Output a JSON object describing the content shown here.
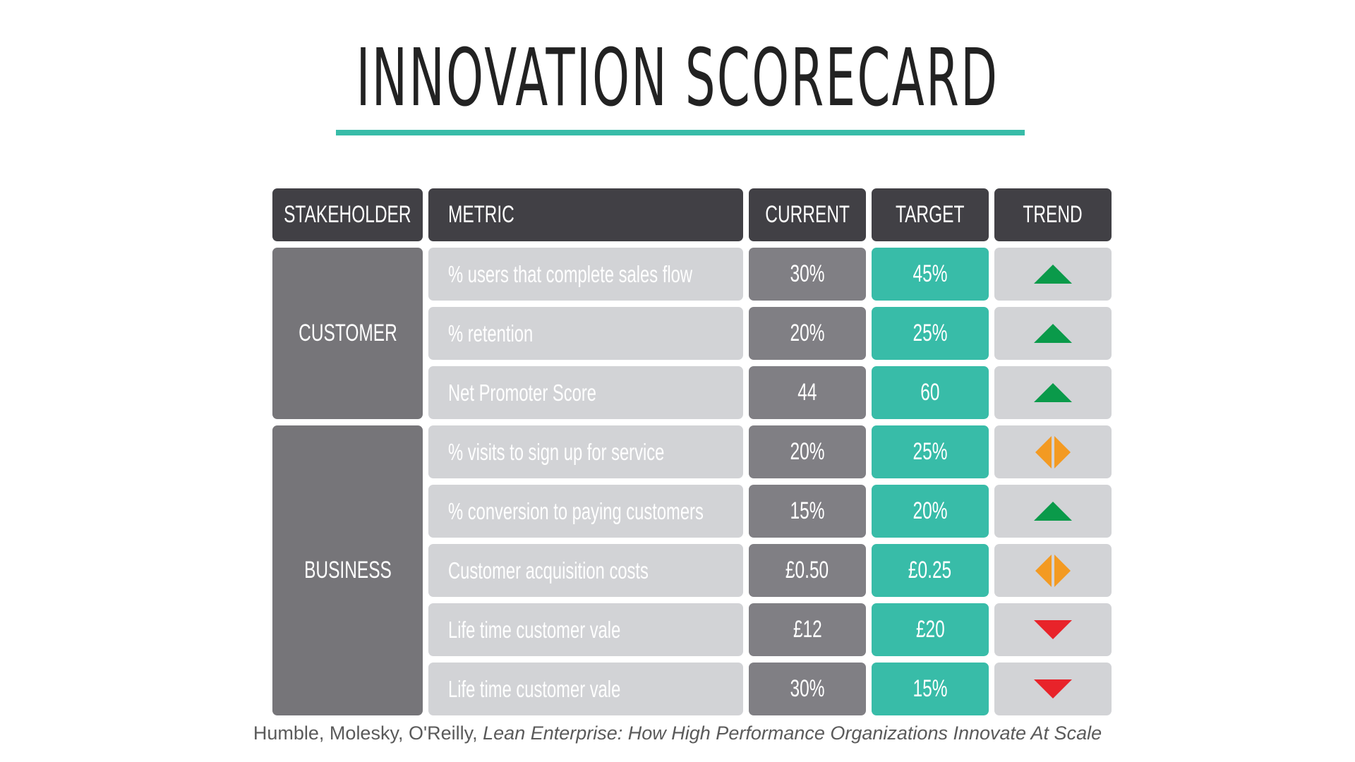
{
  "title": "INNOVATION SCORECARD",
  "colors": {
    "accent": "#38bca8",
    "header_bg": "#414045",
    "stakeholder_bg": "#767579",
    "metric_bg": "#d2d3d6",
    "current_bg": "#807f84",
    "target_bg": "#38bca8",
    "trend_up": "#0a9a4a",
    "trend_flat": "#f39a22",
    "trend_down": "#e8232a"
  },
  "table": {
    "headers": {
      "stakeholder": "STAKEHOLDER",
      "metric": "METRIC",
      "current": "CURRENT",
      "target": "TARGET",
      "trend": "TREND"
    },
    "groups": [
      {
        "stakeholder": "CUSTOMER",
        "row_count": 3
      },
      {
        "stakeholder": "BUSINESS",
        "row_count": 5
      }
    ],
    "rows": [
      {
        "metric": "% users that complete sales flow",
        "current": "30%",
        "target": "45%",
        "trend": "up-triangle-icon"
      },
      {
        "metric": "% retention",
        "current": "20%",
        "target": "25%",
        "trend": "up-triangle-icon"
      },
      {
        "metric": "Net Promoter Score",
        "current": "44",
        "target": "60",
        "trend": "up-triangle-icon"
      },
      {
        "metric": "% visits to sign up for service",
        "current": "20%",
        "target": "25%",
        "trend": "flat-diamond-icon"
      },
      {
        "metric": "% conversion to paying customers",
        "current": "15%",
        "target": "20%",
        "trend": "up-triangle-icon"
      },
      {
        "metric": "Customer acquisition costs",
        "current": "£0.50",
        "target": "£0.25",
        "trend": "flat-diamond-icon"
      },
      {
        "metric": "Life time customer vale",
        "current": "£12",
        "target": "£20",
        "trend": "down-triangle-icon"
      },
      {
        "metric": "Life time customer vale",
        "current": "30%",
        "target": "15%",
        "trend": "down-triangle-icon"
      }
    ]
  },
  "caption": {
    "authors": "Humble, Molesky, O'Reilly,",
    "book": "Lean Enterprise: How High Performance Organizations Innovate At Scale"
  }
}
